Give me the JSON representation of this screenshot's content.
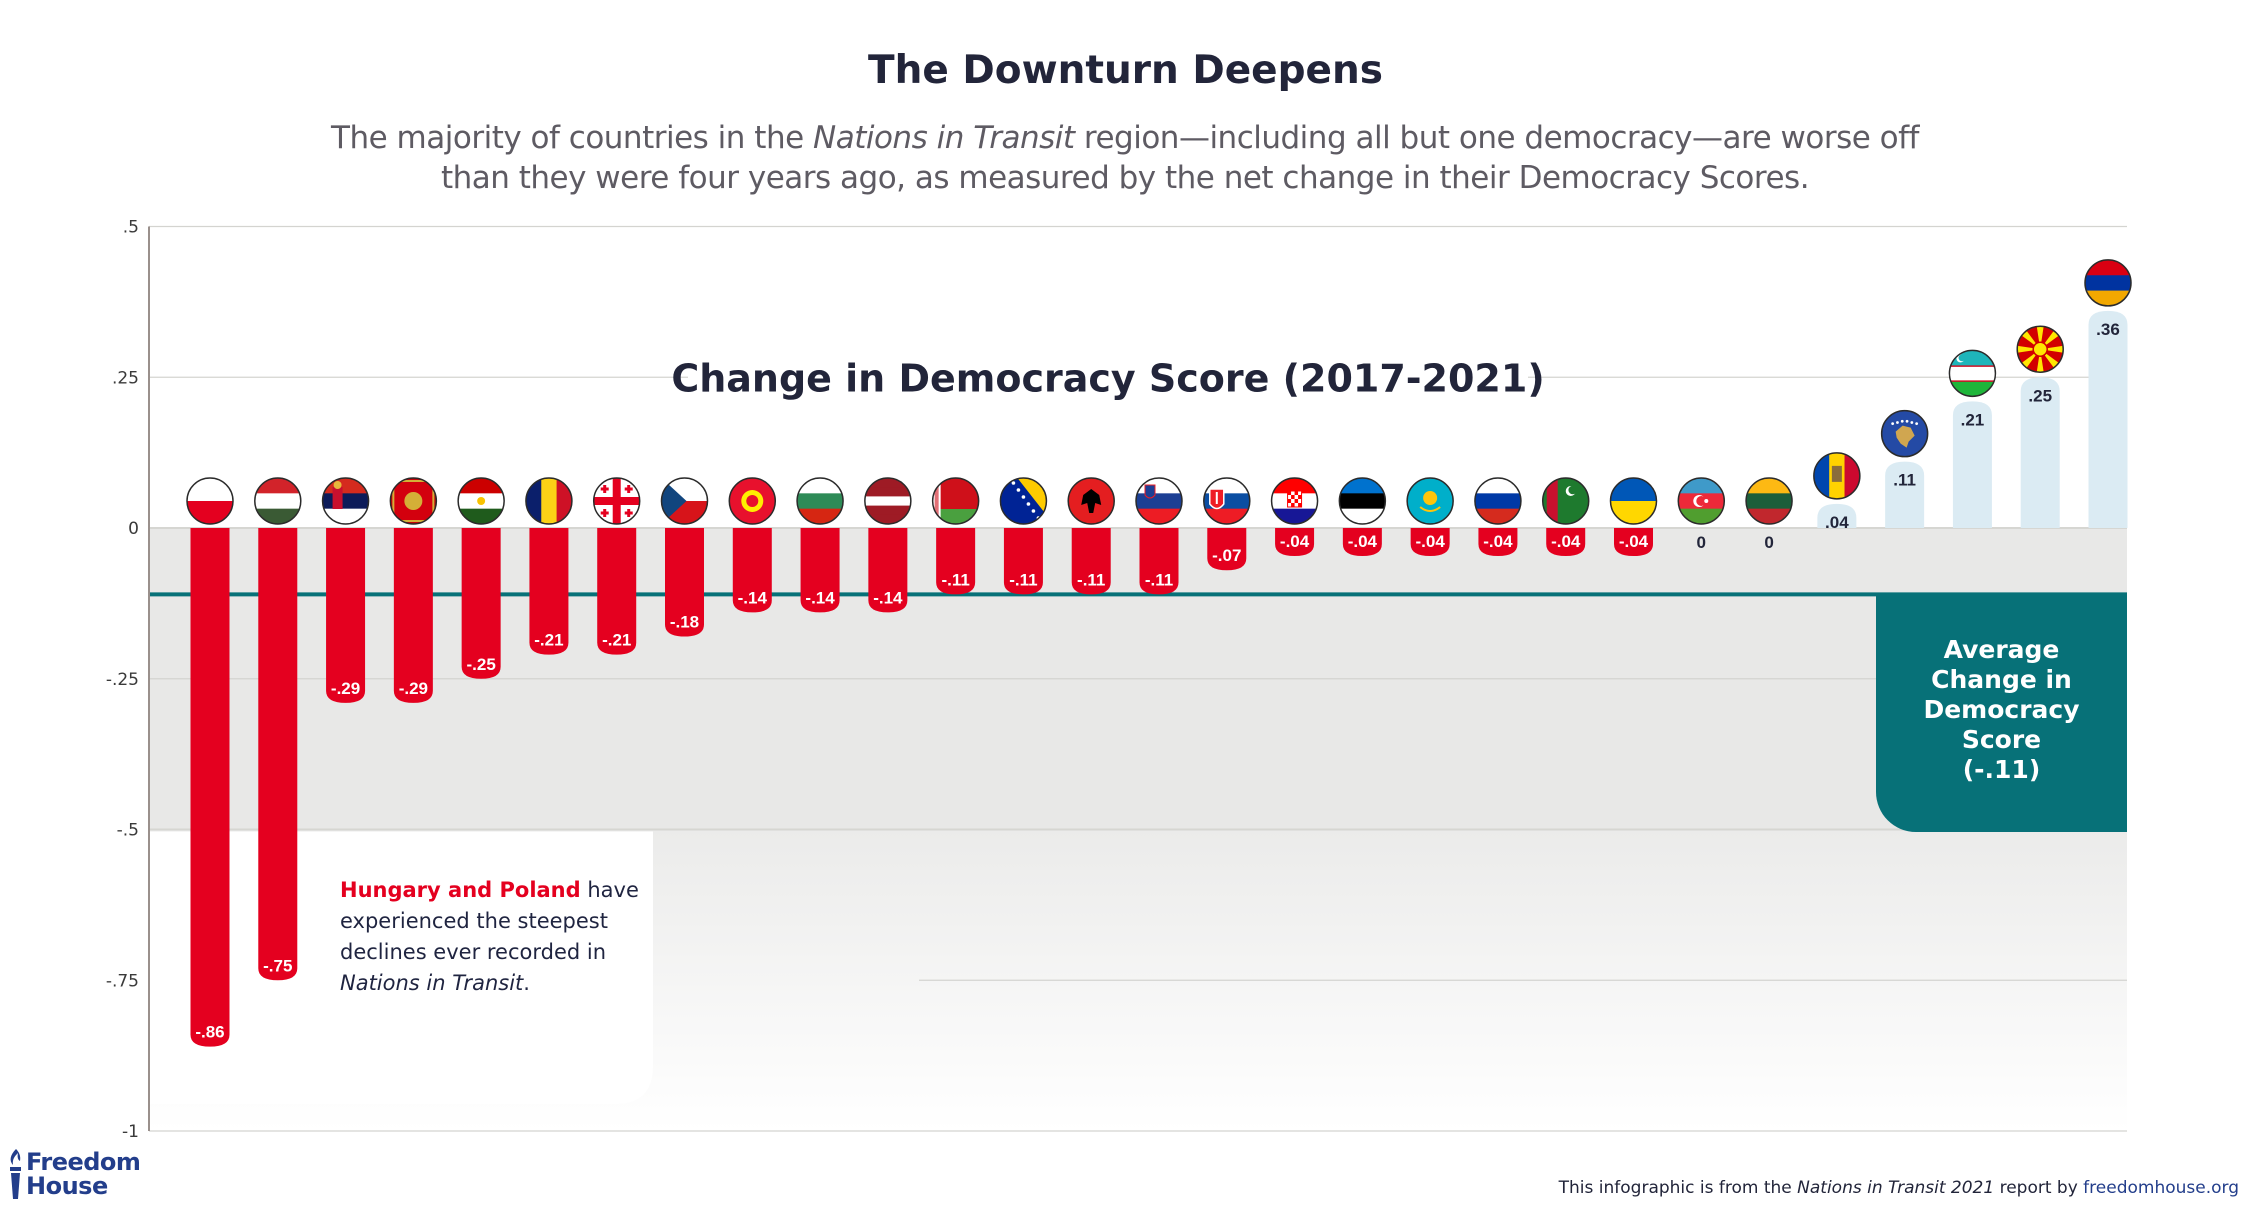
{
  "header": {
    "title": "The Downturn Deepens",
    "subtitle_parts": [
      "The majority of countries in the ",
      "Nations in Transit",
      " region—including all but one democracy—are worse off than they were four years ago, as measured by the net change in their Democracy Scores."
    ]
  },
  "chart_data": {
    "type": "bar",
    "title": "Change in Democracy Score (2017-2021)",
    "xlabel": "",
    "ylabel": "",
    "ylim": [
      -1,
      0.5
    ],
    "yticks": [
      0.5,
      0.25,
      0,
      -0.25,
      -0.5,
      -0.75,
      -1
    ],
    "ytick_labels": [
      ".5",
      ".25",
      "0",
      "-.25",
      "-.5",
      "-.75",
      "-1"
    ],
    "grid": true,
    "categories": [
      "Poland",
      "Hungary",
      "Serbia",
      "Montenegro",
      "Tajikistan",
      "Romania",
      "Georgia",
      "Czech Republic",
      "Kyrgyzstan",
      "Bulgaria",
      "Latvia",
      "Belarus",
      "Bosnia and Herzegovina",
      "Albania",
      "Slovenia",
      "Slovakia",
      "Croatia",
      "Estonia",
      "Kazakhstan",
      "Russia",
      "Turkmenistan",
      "Ukraine",
      "Azerbaijan",
      "Lithuania",
      "Moldova",
      "Kosovo",
      "Uzbekistan",
      "North Macedonia",
      "Armenia"
    ],
    "values": [
      -0.86,
      -0.75,
      -0.29,
      -0.29,
      -0.25,
      -0.21,
      -0.21,
      -0.18,
      -0.14,
      -0.14,
      -0.14,
      -0.11,
      -0.11,
      -0.11,
      -0.11,
      -0.07,
      -0.04,
      -0.04,
      -0.04,
      -0.04,
      -0.04,
      -0.04,
      0,
      0,
      0.04,
      0.11,
      0.21,
      0.25,
      0.36
    ],
    "value_labels": [
      "-.86",
      "-.75",
      "-.29",
      "-.29",
      "-.25",
      "-.21",
      "-.21",
      "-.18",
      "-.14",
      "-.14",
      "-.14",
      "-.11",
      "-.11",
      "-.11",
      "-.11",
      "-.07",
      "-.04",
      "-.04",
      "-.04",
      "-.04",
      "-.04",
      "-.04",
      "0",
      "0",
      ".04",
      ".11",
      ".21",
      ".25",
      ".36"
    ],
    "flags": [
      "poland-flag",
      "hungary-flag",
      "serbia-flag",
      "montenegro-flag",
      "tajikistan-flag",
      "romania-flag",
      "georgia-flag",
      "czech-flag",
      "kyrgyzstan-flag",
      "bulgaria-flag",
      "latvia-flag",
      "belarus-flag",
      "bosnia-flag",
      "albania-flag",
      "slovenia-flag",
      "slovakia-flag",
      "croatia-flag",
      "estonia-flag",
      "kazakhstan-flag",
      "russia-flag",
      "turkmenistan-flag",
      "ukraine-flag",
      "azerbaijan-flag",
      "lithuania-flag",
      "moldova-flag",
      "kosovo-flag",
      "uzbekistan-flag",
      "north-macedonia-flag",
      "armenia-flag"
    ],
    "average": -0.11,
    "average_label": "-.11",
    "colors": {
      "negative": "#e4001f",
      "positive": "#dbebf3",
      "average_line": "#077178",
      "negative_label": "#ffffff",
      "positive_label": "#22253a"
    }
  },
  "annotations": {
    "callout_highlight": "Hungary and Poland",
    "callout_text_1": " have experienced the steepest declines ever recorded in ",
    "callout_italic": "Nations in Transit",
    "callout_text_2": ".",
    "average_box_lines": [
      "Average",
      "Change in",
      "Democracy",
      "Score",
      "(-.11)"
    ]
  },
  "footer": {
    "logo_line1": "Freedom",
    "logo_line2": "House",
    "credit_prefix": "This infographic is from the ",
    "credit_italic": "Nations in Transit 2021",
    "credit_middle": " report by ",
    "credit_link": "freedomhouse.org"
  }
}
